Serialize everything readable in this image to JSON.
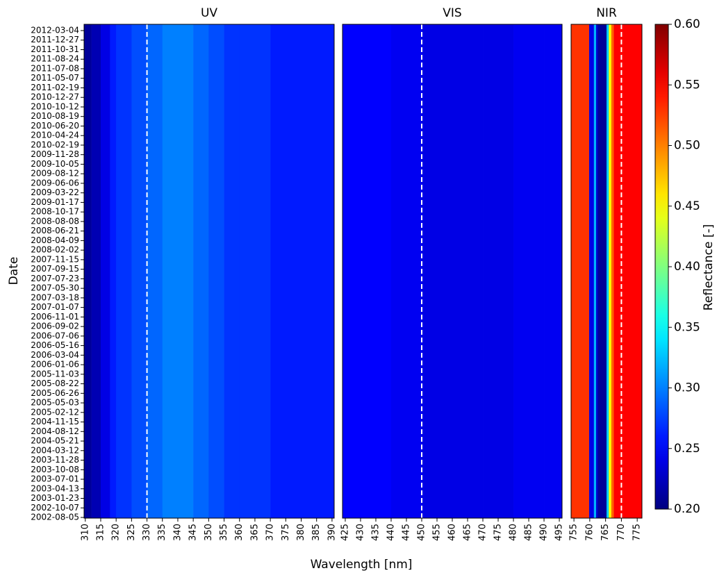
{
  "chart_data": {
    "type": "heatmap",
    "xlabel": "Wavelength [nm]",
    "ylabel": "Date",
    "colormap": "jet",
    "clim": [
      0.2,
      0.6
    ],
    "colorbar": {
      "label": "Reflectance [-]",
      "ticks": [
        {
          "value": 0.2,
          "label": "0.20"
        },
        {
          "value": 0.25,
          "label": "0.25"
        },
        {
          "value": 0.3,
          "label": "0.30"
        },
        {
          "value": 0.35,
          "label": "0.35"
        },
        {
          "value": 0.4,
          "label": "0.40"
        },
        {
          "value": 0.45,
          "label": "0.45"
        },
        {
          "value": 0.5,
          "label": "0.50"
        },
        {
          "value": 0.55,
          "label": "0.55"
        },
        {
          "value": 0.6,
          "label": "0.60"
        }
      ]
    },
    "categories": [
      "2012-03-04",
      "2011-12-27",
      "2011-10-31",
      "2011-08-24",
      "2011-07-08",
      "2011-05-07",
      "2011-02-19",
      "2010-12-27",
      "2010-10-12",
      "2010-08-19",
      "2010-06-20",
      "2010-04-24",
      "2010-02-19",
      "2009-11-28",
      "2009-10-05",
      "2009-08-12",
      "2009-06-06",
      "2009-03-22",
      "2009-01-17",
      "2008-10-17",
      "2008-08-08",
      "2008-06-21",
      "2008-04-09",
      "2008-02-02",
      "2007-11-15",
      "2007-09-15",
      "2007-07-23",
      "2007-05-30",
      "2007-03-18",
      "2007-01-07",
      "2006-11-01",
      "2006-09-02",
      "2006-07-06",
      "2006-05-16",
      "2006-03-04",
      "2006-01-06",
      "2005-11-03",
      "2005-08-22",
      "2005-06-26",
      "2005-05-03",
      "2005-02-12",
      "2004-11-15",
      "2004-08-12",
      "2004-05-21",
      "2004-03-12",
      "2003-11-28",
      "2003-10-08",
      "2003-07-01",
      "2003-04-13",
      "2003-01-23",
      "2002-10-07",
      "2002-08-05"
    ],
    "panels": [
      {
        "title": "UV",
        "xlim": [
          309.6,
          390.7
        ],
        "xticks": [
          310,
          315,
          320,
          325,
          330,
          335,
          340,
          345,
          350,
          355,
          360,
          365,
          370,
          375,
          380,
          385,
          390
        ],
        "bins": [
          309.6,
          312,
          315,
          318,
          320,
          325,
          330,
          335,
          340,
          345,
          350,
          355,
          360,
          370,
          380,
          390.7
        ],
        "values": [
          0.21,
          0.22,
          0.24,
          0.26,
          0.27,
          0.28,
          0.29,
          0.3,
          0.3,
          0.29,
          0.28,
          0.27,
          0.27,
          0.26,
          0.26
        ],
        "reference_line": 330
      },
      {
        "title": "VIS",
        "xlim": [
          424.1,
          495.9
        ],
        "xticks": [
          425,
          430,
          435,
          440,
          445,
          450,
          455,
          460,
          465,
          470,
          475,
          480,
          485,
          490,
          495
        ],
        "bins": [
          424.1,
          430,
          440,
          450,
          460,
          470,
          480,
          490,
          495.9
        ],
        "values": [
          0.25,
          0.25,
          0.245,
          0.24,
          0.24,
          0.24,
          0.245,
          0.245
        ],
        "reference_line": 450
      },
      {
        "title": "NIR",
        "xlim": [
          754.1,
          776.5
        ],
        "xticks": [
          755,
          760,
          765,
          770,
          775
        ],
        "bins": [
          754.1,
          759.8,
          761.3,
          762,
          762.6,
          765.3,
          766,
          766.8,
          767.6,
          776.5
        ],
        "values": [
          0.53,
          0.24,
          0.32,
          0.23,
          0.21,
          0.33,
          0.45,
          0.51,
          0.55
        ],
        "reference_line": 770
      }
    ]
  }
}
